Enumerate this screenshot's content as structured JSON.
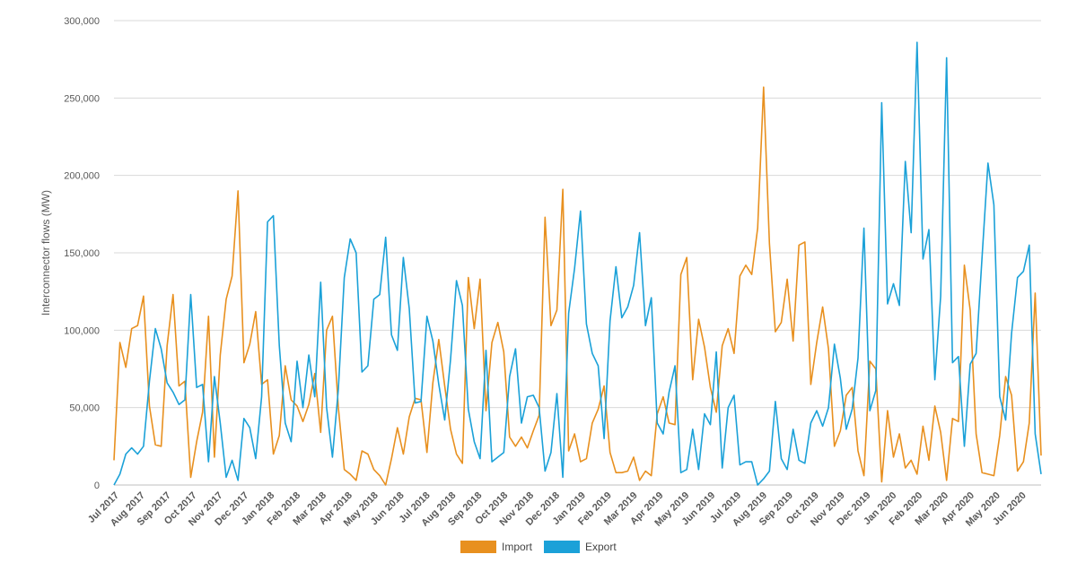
{
  "chart_data": {
    "type": "line",
    "title": "",
    "xlabel": "",
    "ylabel": "Interconnector flows (MW)",
    "ylim": [
      0,
      300000
    ],
    "yticks": [
      0,
      50000,
      100000,
      150000,
      200000,
      250000,
      300000
    ],
    "ytick_labels": [
      "0",
      "50,000",
      "100,000",
      "150,000",
      "200,000",
      "250,000",
      "300,000"
    ],
    "grid": true,
    "legend_position": "bottom",
    "x_tick_labels": [
      "Jul 2017",
      "Aug 2017",
      "Sep 2017",
      "Oct 2017",
      "Nov 2017",
      "Dec 2017",
      "Jan 2018",
      "Feb 2018",
      "Mar 2018",
      "Apr 2018",
      "May 2018",
      "Jun 2018",
      "Jul 2018",
      "Aug 2018",
      "Sep 2018",
      "Oct 2018",
      "Nov 2018",
      "Dec 2018",
      "Jan 2019",
      "Feb 2019",
      "Mar 2019",
      "Apr 2019",
      "May 2019",
      "Jun 2019",
      "Jul 2019",
      "Aug 2019",
      "Sep 2019",
      "Oct 2019",
      "Nov 2019",
      "Dec 2019",
      "Jan 2020",
      "Feb 2020",
      "Mar 2020",
      "Apr 2020",
      "May 2020",
      "Jun 2020"
    ],
    "series": [
      {
        "name": "Import",
        "color": "#E8901F",
        "values": [
          16000,
          92000,
          76000,
          101000,
          103000,
          122000,
          51000,
          26000,
          25000,
          90000,
          123000,
          64000,
          67000,
          5000,
          28000,
          47000,
          109000,
          18000,
          84000,
          120000,
          135000,
          190000,
          79000,
          91000,
          112000,
          65000,
          68000,
          20000,
          32000,
          77000,
          55000,
          51000,
          41000,
          52000,
          72000,
          34000,
          100000,
          109000,
          50000,
          10000,
          7000,
          3000,
          22000,
          20000,
          10000,
          6000,
          0,
          17000,
          37000,
          20000,
          44000,
          56000,
          55000,
          21000,
          66000,
          94000,
          64000,
          36000,
          20000,
          14000,
          134000,
          101000,
          133000,
          48000,
          92000,
          105000,
          86000,
          31000,
          25000,
          31000,
          24000,
          35000,
          45000,
          173000,
          103000,
          113000,
          191000,
          22000,
          33000,
          15000,
          17000,
          40000,
          49000,
          64000,
          21000,
          8000,
          8000,
          9000,
          18000,
          3000,
          9000,
          6000,
          46000,
          57000,
          40000,
          39000,
          136000,
          147000,
          68000,
          107000,
          89000,
          63000,
          47000,
          90000,
          101000,
          85000,
          135000,
          142000,
          136000,
          166000,
          257000,
          156000,
          99000,
          105000,
          133000,
          93000,
          155000,
          157000,
          65000,
          92000,
          115000,
          88000,
          25000,
          35000,
          58000,
          63000,
          22000,
          6000,
          80000,
          75000,
          2000,
          48000,
          18000,
          33000,
          11000,
          16000,
          7000,
          38000,
          16000,
          51000,
          34000,
          3000,
          43000,
          41000,
          142000,
          113000,
          33000,
          8000,
          7000,
          6000,
          32000,
          70000,
          58000,
          9000,
          15000,
          40000,
          124000,
          19000
        ]
      },
      {
        "name": "Export",
        "color": "#1BA1D8",
        "values": [
          0,
          7000,
          20000,
          24000,
          20000,
          25000,
          67000,
          101000,
          88000,
          66000,
          60000,
          52000,
          55000,
          123000,
          63000,
          65000,
          15000,
          70000,
          40000,
          5000,
          16000,
          3000,
          43000,
          37000,
          17000,
          57000,
          170000,
          174000,
          90000,
          40000,
          28000,
          80000,
          50000,
          84000,
          57000,
          131000,
          50000,
          18000,
          62000,
          134000,
          159000,
          150000,
          73000,
          77000,
          120000,
          123000,
          160000,
          97000,
          87000,
          147000,
          114000,
          53000,
          54000,
          109000,
          93000,
          65000,
          42000,
          81000,
          132000,
          116000,
          49000,
          28000,
          17000,
          87000,
          15000,
          18000,
          21000,
          70000,
          88000,
          40000,
          57000,
          58000,
          50000,
          9000,
          21000,
          59000,
          5000,
          111000,
          140000,
          177000,
          104000,
          85000,
          77000,
          30000,
          106000,
          141000,
          108000,
          115000,
          129000,
          163000,
          103000,
          121000,
          40000,
          33000,
          60000,
          77000,
          8000,
          10000,
          36000,
          10000,
          46000,
          39000,
          86000,
          11000,
          50000,
          58000,
          13000,
          15000,
          15000,
          0,
          4000,
          9000,
          54000,
          17000,
          10000,
          36000,
          16000,
          14000,
          40000,
          48000,
          38000,
          50000,
          91000,
          69000,
          36000,
          49000,
          82000,
          166000,
          48000,
          61000,
          247000,
          117000,
          130000,
          116000,
          209000,
          163000,
          286000,
          146000,
          165000,
          68000,
          122000,
          276000,
          79000,
          83000,
          25000,
          78000,
          85000,
          147000,
          208000,
          181000,
          57000,
          42000,
          98000,
          134000,
          138000,
          155000,
          33000,
          7000
        ]
      }
    ]
  }
}
